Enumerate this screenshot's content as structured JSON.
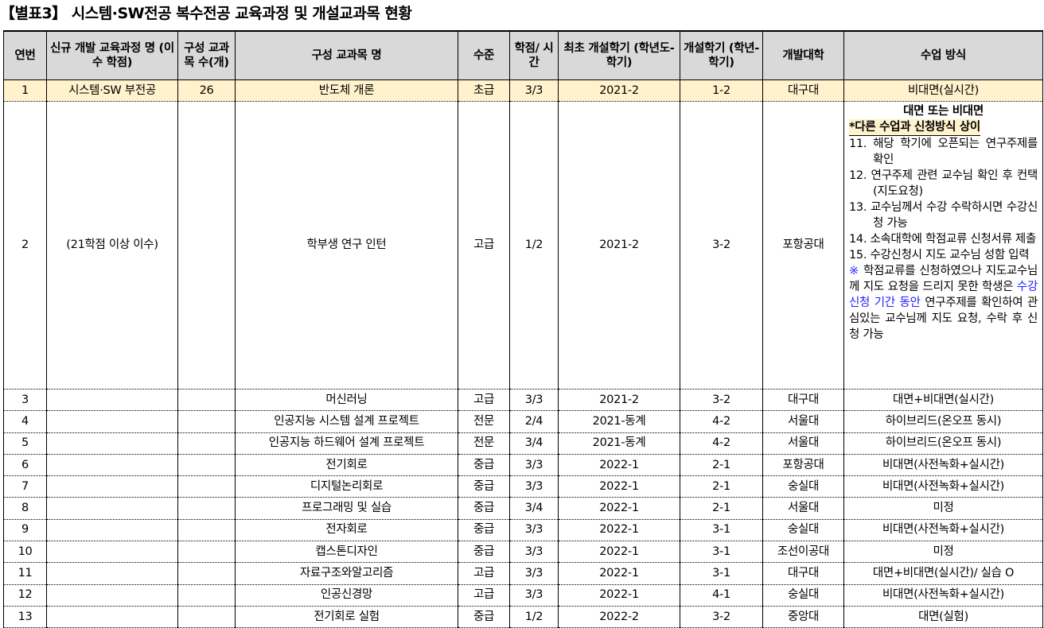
{
  "title": "【별표3】 시스템·SW전공 복수전공 교육과정 및 개설교과목 현황",
  "headers": [
    "연번",
    "신규 개발 교육과정 명 (이수 학점)",
    "구성 교과목 수(개)",
    "구성 교과목 명",
    "수준",
    "학점/ 시간",
    "최초 개설학기 (학년도-학기)",
    "개설학기 (학년-학기)",
    "개발대학",
    "수업 방식"
  ],
  "course": {
    "name": "시스템·SW 부전공",
    "credits": "(21학점 이상 이수)",
    "count": "26"
  },
  "rows": [
    {
      "no": "1",
      "subject": "반도체 개론",
      "level": "초급",
      "credit": "3/3",
      "first": "2021-2",
      "sem": "1-2",
      "univ": "대구대",
      "method": "비대면(실시간)"
    },
    {
      "no": "2",
      "subject": "학부생 연구 인턴",
      "level": "고급",
      "credit": "1/2",
      "first": "2021-2",
      "sem": "3-2",
      "univ": "포항공대",
      "method": ""
    },
    {
      "no": "3",
      "subject": "머신러닝",
      "level": "고급",
      "credit": "3/3",
      "first": "2021-2",
      "sem": "3-2",
      "univ": "대구대",
      "method": "대면+비대면(실시간)"
    },
    {
      "no": "4",
      "subject": "인공지능 시스템 설계 프로젝트",
      "level": "전문",
      "credit": "2/4",
      "first": "2021-동계",
      "sem": "4-2",
      "univ": "서울대",
      "method": "하이브리드(온오프 동시)"
    },
    {
      "no": "5",
      "subject": "인공지능 하드웨어 설계 프로젝트",
      "level": "전문",
      "credit": "3/4",
      "first": "2021-동계",
      "sem": "4-2",
      "univ": "서울대",
      "method": "하이브리드(온오프 동시)"
    },
    {
      "no": "6",
      "subject": "전기회로",
      "level": "중급",
      "credit": "3/3",
      "first": "2022-1",
      "sem": "2-1",
      "univ": "포항공대",
      "method": "비대면(사전녹화+실시간)"
    },
    {
      "no": "7",
      "subject": "디지털논리회로",
      "level": "중급",
      "credit": "3/3",
      "first": "2022-1",
      "sem": "2-1",
      "univ": "숭실대",
      "method": "비대면(사전녹화+실시간)"
    },
    {
      "no": "8",
      "subject": "프로그래밍 및 실습",
      "level": "중급",
      "credit": "3/4",
      "first": "2022-1",
      "sem": "2-1",
      "univ": "서울대",
      "method": "미정"
    },
    {
      "no": "9",
      "subject": "전자회로",
      "level": "중급",
      "credit": "3/3",
      "first": "2022-1",
      "sem": "3-1",
      "univ": "숭실대",
      "method": "비대면(사전녹화+실시간)"
    },
    {
      "no": "10",
      "subject": "캡스톤디자인",
      "level": "중급",
      "credit": "3/3",
      "first": "2022-1",
      "sem": "3-1",
      "univ": "조선이공대",
      "method": "미정"
    },
    {
      "no": "11",
      "subject": "자료구조와알고리즘",
      "level": "고급",
      "credit": "3/3",
      "first": "2022-1",
      "sem": "3-1",
      "univ": "대구대",
      "method": "대면+비대면(실시간)/ 실습 O"
    },
    {
      "no": "12",
      "subject": "인공신경망",
      "level": "고급",
      "credit": "3/3",
      "first": "2022-1",
      "sem": "4-1",
      "univ": "숭실대",
      "method": "비대면(사전녹화+실시간)"
    },
    {
      "no": "13",
      "subject": "전기회로 실험",
      "level": "중급",
      "credit": "1/2",
      "first": "2022-2",
      "sem": "3-2",
      "univ": "중앙대",
      "method": "대면(실험)"
    }
  ],
  "row2_method": {
    "title": "대면 또는 비대면",
    "note": "*다른 수업과 신청방식 상이",
    "steps": [
      "11. 해당 학기에 오픈되는 연구주제를 확인",
      "12. 연구주제 관련 교수님 확인 후 컨택(지도요청)",
      "13. 교수님께서 수강 수락하시면 수강신청 가능",
      "14. 소속대학에 학점교류 신청서류 제출",
      "15. 수강신청시 지도 교수님 성함 입력"
    ],
    "tail_mark": "※",
    "tail_a": " 학점교류를 신청하였으나 지도교수님께 지도 요청을 드리지 못한 학생은 ",
    "tail_blue": "수강신청 기간 동안",
    "tail_b": " 연구주제를 확인하여 관심있는 교수님께 지도 요청, 수락 후 신청 가능"
  },
  "colors": {
    "header_bg": "#d9d9d9",
    "highlight_bg": "#fff2cc",
    "link_blue": "#1f1fff"
  }
}
